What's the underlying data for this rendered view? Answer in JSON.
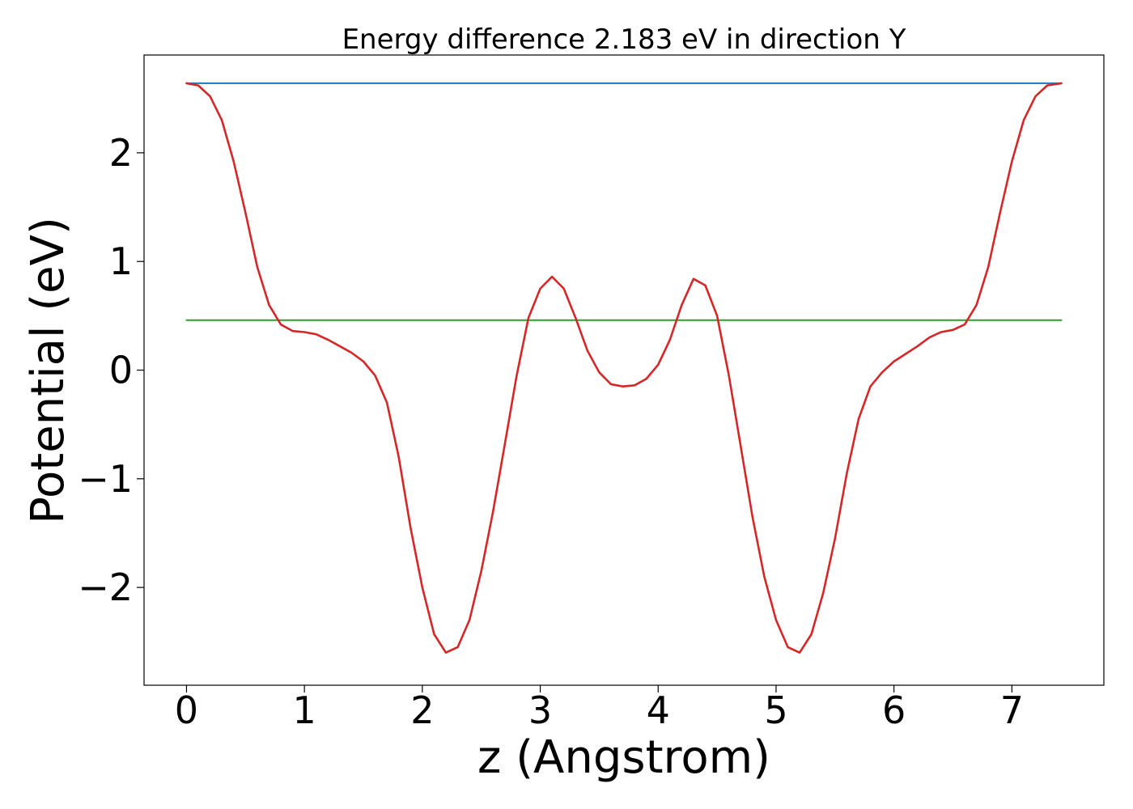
{
  "chart_data": {
    "type": "line",
    "title": "Energy difference 2.183 eV in direction Y",
    "xlabel": "z (Angstrom)",
    "ylabel": "Potential (eV)",
    "xlim": [
      -0.36,
      7.78
    ],
    "ylim": [
      -2.9,
      2.9
    ],
    "xticks": [
      0,
      1,
      2,
      3,
      4,
      5,
      6,
      7
    ],
    "yticks": [
      -2,
      -1,
      0,
      1,
      2
    ],
    "xtick_labels": [
      "0",
      "1",
      "2",
      "3",
      "4",
      "5",
      "6",
      "7"
    ],
    "ytick_labels": [
      "−2",
      "−1",
      "0",
      "1",
      "2"
    ],
    "grid": false,
    "legend": "none",
    "series": [
      {
        "color": "#1f77b4",
        "points": [
          [
            0.0,
            2.64
          ],
          [
            7.42,
            2.64
          ]
        ]
      },
      {
        "color": "#2ca02c",
        "points": [
          [
            0.0,
            0.46
          ],
          [
            7.42,
            0.46
          ]
        ]
      },
      {
        "color": "#d62728",
        "points": [
          [
            0.0,
            2.64
          ],
          [
            0.1,
            2.62
          ],
          [
            0.2,
            2.52
          ],
          [
            0.3,
            2.3
          ],
          [
            0.4,
            1.92
          ],
          [
            0.5,
            1.45
          ],
          [
            0.6,
            0.95
          ],
          [
            0.7,
            0.6
          ],
          [
            0.8,
            0.42
          ],
          [
            0.9,
            0.36
          ],
          [
            1.0,
            0.35
          ],
          [
            1.1,
            0.33
          ],
          [
            1.2,
            0.28
          ],
          [
            1.3,
            0.22
          ],
          [
            1.4,
            0.16
          ],
          [
            1.5,
            0.08
          ],
          [
            1.6,
            -0.05
          ],
          [
            1.7,
            -0.3
          ],
          [
            1.8,
            -0.8
          ],
          [
            1.9,
            -1.45
          ],
          [
            2.0,
            -2.0
          ],
          [
            2.1,
            -2.43
          ],
          [
            2.2,
            -2.6
          ],
          [
            2.3,
            -2.55
          ],
          [
            2.4,
            -2.3
          ],
          [
            2.5,
            -1.85
          ],
          [
            2.6,
            -1.3
          ],
          [
            2.7,
            -0.68
          ],
          [
            2.8,
            -0.05
          ],
          [
            2.9,
            0.48
          ],
          [
            3.0,
            0.75
          ],
          [
            3.1,
            0.86
          ],
          [
            3.2,
            0.75
          ],
          [
            3.3,
            0.48
          ],
          [
            3.4,
            0.18
          ],
          [
            3.5,
            -0.02
          ],
          [
            3.6,
            -0.13
          ],
          [
            3.7,
            -0.15
          ],
          [
            3.8,
            -0.14
          ],
          [
            3.9,
            -0.08
          ],
          [
            4.0,
            0.05
          ],
          [
            4.1,
            0.28
          ],
          [
            4.2,
            0.6
          ],
          [
            4.3,
            0.84
          ],
          [
            4.4,
            0.78
          ],
          [
            4.5,
            0.5
          ],
          [
            4.6,
            -0.05
          ],
          [
            4.7,
            -0.7
          ],
          [
            4.8,
            -1.35
          ],
          [
            4.9,
            -1.9
          ],
          [
            5.0,
            -2.3
          ],
          [
            5.1,
            -2.55
          ],
          [
            5.2,
            -2.6
          ],
          [
            5.3,
            -2.43
          ],
          [
            5.4,
            -2.05
          ],
          [
            5.5,
            -1.55
          ],
          [
            5.6,
            -0.95
          ],
          [
            5.7,
            -0.45
          ],
          [
            5.8,
            -0.15
          ],
          [
            5.9,
            -0.02
          ],
          [
            6.0,
            0.08
          ],
          [
            6.1,
            0.15
          ],
          [
            6.2,
            0.22
          ],
          [
            6.3,
            0.3
          ],
          [
            6.4,
            0.35
          ],
          [
            6.5,
            0.37
          ],
          [
            6.6,
            0.42
          ],
          [
            6.7,
            0.6
          ],
          [
            6.8,
            0.95
          ],
          [
            6.9,
            1.45
          ],
          [
            7.0,
            1.92
          ],
          [
            7.1,
            2.3
          ],
          [
            7.2,
            2.52
          ],
          [
            7.3,
            2.62
          ],
          [
            7.42,
            2.64
          ]
        ]
      }
    ]
  }
}
